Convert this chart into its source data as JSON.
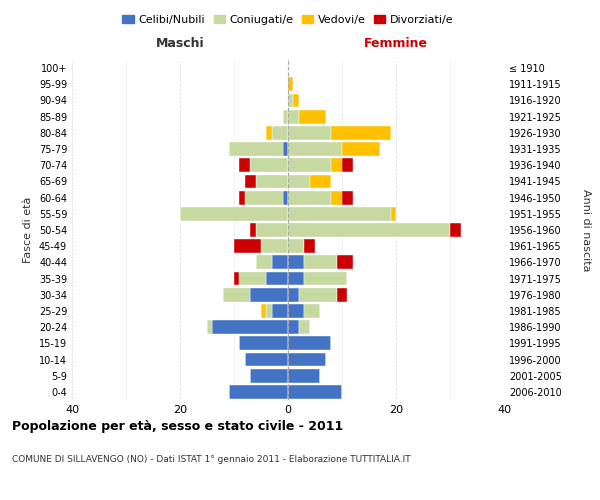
{
  "age_groups": [
    "0-4",
    "5-9",
    "10-14",
    "15-19",
    "20-24",
    "25-29",
    "30-34",
    "35-39",
    "40-44",
    "45-49",
    "50-54",
    "55-59",
    "60-64",
    "65-69",
    "70-74",
    "75-79",
    "80-84",
    "85-89",
    "90-94",
    "95-99",
    "100+"
  ],
  "birth_years": [
    "2006-2010",
    "2001-2005",
    "1996-2000",
    "1991-1995",
    "1986-1990",
    "1981-1985",
    "1976-1980",
    "1971-1975",
    "1966-1970",
    "1961-1965",
    "1956-1960",
    "1951-1955",
    "1946-1950",
    "1941-1945",
    "1936-1940",
    "1931-1935",
    "1926-1930",
    "1921-1925",
    "1916-1920",
    "1911-1915",
    "≤ 1910"
  ],
  "colors": {
    "celibi": "#4472C4",
    "coniugati": "#c5d9a0",
    "vedovi": "#ffc000",
    "divorziati": "#cc0000"
  },
  "maschi": {
    "celibi": [
      11,
      7,
      8,
      9,
      14,
      3,
      7,
      4,
      3,
      0,
      0,
      0,
      1,
      0,
      0,
      1,
      0,
      0,
      0,
      0,
      0
    ],
    "coniugati": [
      0,
      0,
      0,
      0,
      1,
      1,
      5,
      5,
      3,
      5,
      6,
      20,
      7,
      6,
      7,
      10,
      3,
      1,
      0,
      0,
      0
    ],
    "vedovi": [
      0,
      0,
      0,
      0,
      0,
      1,
      0,
      0,
      0,
      0,
      0,
      0,
      0,
      0,
      0,
      0,
      1,
      0,
      0,
      0,
      0
    ],
    "divorziati": [
      0,
      0,
      0,
      0,
      0,
      0,
      0,
      1,
      0,
      5,
      1,
      0,
      1,
      2,
      2,
      0,
      0,
      0,
      0,
      0,
      0
    ]
  },
  "femmine": {
    "nubili": [
      10,
      6,
      7,
      8,
      2,
      3,
      2,
      3,
      3,
      0,
      0,
      0,
      0,
      0,
      0,
      0,
      0,
      0,
      0,
      0,
      0
    ],
    "coniugate": [
      0,
      0,
      0,
      0,
      2,
      3,
      7,
      8,
      6,
      3,
      30,
      19,
      8,
      4,
      8,
      10,
      8,
      2,
      1,
      0,
      0
    ],
    "vedove": [
      0,
      0,
      0,
      0,
      0,
      0,
      0,
      0,
      0,
      0,
      0,
      1,
      2,
      4,
      2,
      7,
      11,
      5,
      1,
      1,
      0
    ],
    "divorziate": [
      0,
      0,
      0,
      0,
      0,
      0,
      2,
      0,
      3,
      2,
      2,
      0,
      2,
      0,
      2,
      0,
      0,
      0,
      0,
      0,
      0
    ]
  },
  "xlim": 40,
  "title": "Popolazione per età, sesso e stato civile - 2011",
  "subtitle": "COMUNE DI SILLAVENGO (NO) - Dati ISTAT 1° gennaio 2011 - Elaborazione TUTTITALIA.IT",
  "ylabel": "Fasce di età",
  "ylabel_right": "Anni di nascita",
  "label_maschi": "Maschi",
  "label_femmine": "Femmine",
  "legend_labels": [
    "Celibi/Nubili",
    "Coniugati/e",
    "Vedovi/e",
    "Divorziati/e"
  ],
  "background_color": "#ffffff",
  "grid_color": "#cccccc",
  "maschi_label_color": "#333333",
  "femmine_label_color": "#cc0000"
}
